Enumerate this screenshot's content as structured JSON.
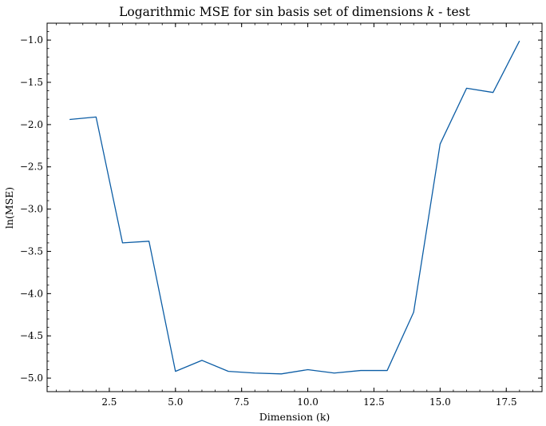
{
  "chart_data": {
    "type": "line",
    "title": "Logarithmic MSE for sin basis set of dimensions k - test",
    "title_prefix": "Logarithmic MSE for sin basis set of dimensions ",
    "title_variable": "k",
    "title_suffix": " - test",
    "xlabel": "Dimension (k)",
    "ylabel": "ln(MSE)",
    "xlim": [
      0.15,
      18.85
    ],
    "ylim": [
      -5.16,
      -0.8
    ],
    "x_ticks": [
      2.5,
      5.0,
      7.5,
      10.0,
      12.5,
      15.0,
      17.5
    ],
    "x_tick_labels": [
      "2.5",
      "5.0",
      "7.5",
      "10.0",
      "12.5",
      "15.0",
      "17.5"
    ],
    "y_ticks": [
      -5.0,
      -4.5,
      -4.0,
      -3.5,
      -3.0,
      -2.5,
      -2.0,
      -1.5,
      -1.0
    ],
    "y_tick_labels": [
      "−5.0",
      "−4.5",
      "−4.0",
      "−3.5",
      "−3.0",
      "−2.5",
      "−2.0",
      "−1.5",
      "−1.0"
    ],
    "x_minor_step": 0.5,
    "y_minor_step": 0.1,
    "grid": false,
    "line_color": "#0C5DA5",
    "series": [
      {
        "x": [
          1,
          2,
          3,
          4,
          5,
          6,
          7,
          8,
          9,
          10,
          11,
          12,
          13,
          14,
          15,
          16,
          17,
          18
        ],
        "values": [
          -1.94,
          -1.91,
          -3.4,
          -3.38,
          -4.92,
          -4.79,
          -4.92,
          -4.94,
          -4.95,
          -4.9,
          -4.94,
          -4.91,
          -4.91,
          -4.22,
          -2.23,
          -1.57,
          -1.62,
          -1.01
        ]
      }
    ]
  }
}
